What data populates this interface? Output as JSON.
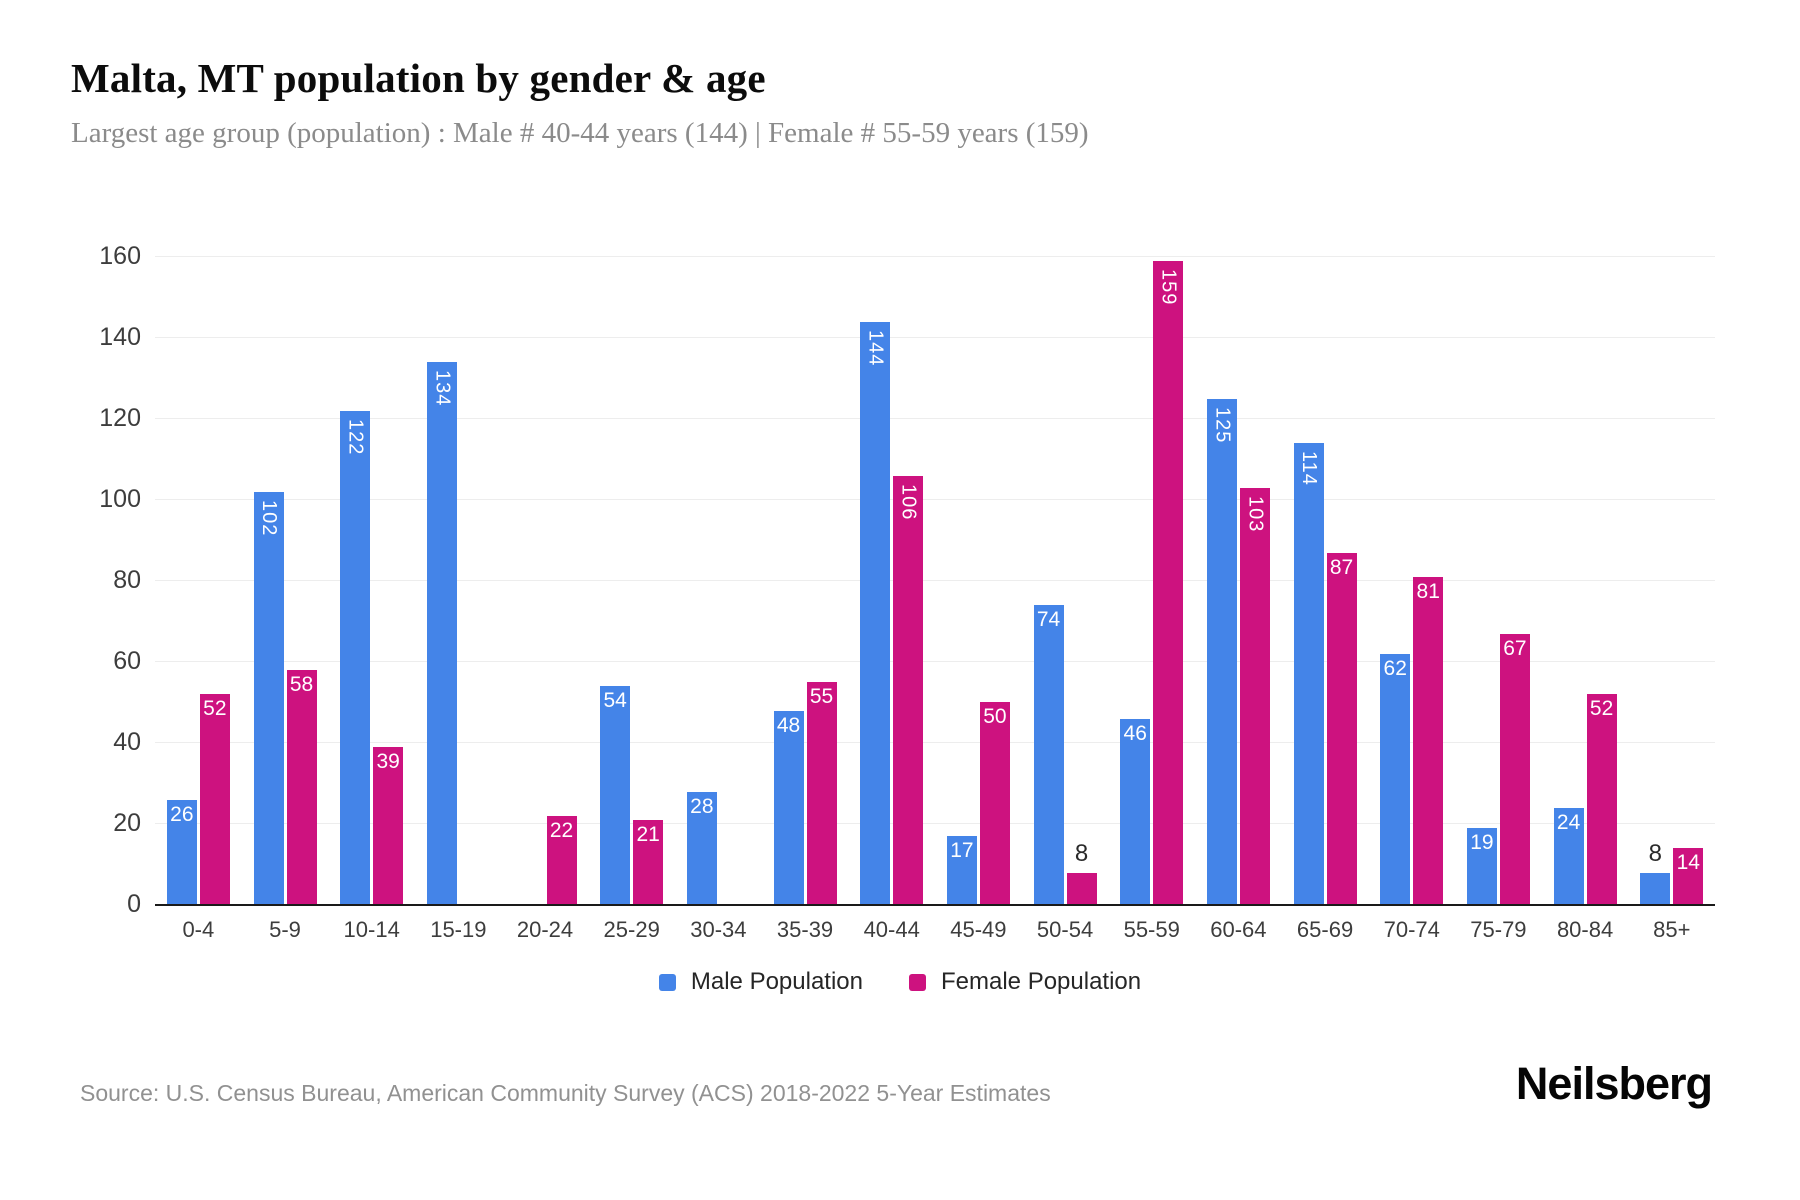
{
  "page": {
    "title": "Malta, MT population by gender & age",
    "subtitle": "Largest age group (population) : Male # 40-44 years (144) | Female # 55-59 years (159)",
    "source": "Source: U.S. Census Bureau, American Community Survey (ACS) 2018-2022 5-Year Estimates",
    "brand": "Neilsberg"
  },
  "colors": {
    "male": "#4484e8",
    "female": "#cd127f",
    "grid": "#ededed",
    "axis_line": "#1a1a1a",
    "tick_label": "#3d3d3d",
    "bar_label_inside": "#ffffff",
    "bar_label_outside": "#2a2a2a"
  },
  "chart_data": {
    "type": "bar",
    "title": "Malta, MT population by gender & age",
    "categories": [
      "0-4",
      "5-9",
      "10-14",
      "15-19",
      "20-24",
      "25-29",
      "30-34",
      "35-39",
      "40-44",
      "45-49",
      "50-54",
      "55-59",
      "60-64",
      "65-69",
      "70-74",
      "75-79",
      "80-84",
      "85+"
    ],
    "series": [
      {
        "name": "Male Population",
        "color": "#4484e8",
        "values": [
          26,
          102,
          122,
          134,
          0,
          54,
          28,
          48,
          144,
          17,
          74,
          46,
          125,
          114,
          62,
          19,
          24,
          8
        ]
      },
      {
        "name": "Female Population",
        "color": "#cd127f",
        "values": [
          52,
          58,
          39,
          0,
          22,
          21,
          0,
          55,
          106,
          50,
          8,
          159,
          103,
          87,
          81,
          67,
          52,
          14
        ]
      }
    ],
    "xlabel": "",
    "ylabel": "",
    "ylim": [
      0,
      160
    ],
    "yticks": [
      0,
      20,
      40,
      60,
      80,
      100,
      120,
      140,
      160
    ],
    "grid": true,
    "legend_position": "bottom"
  }
}
